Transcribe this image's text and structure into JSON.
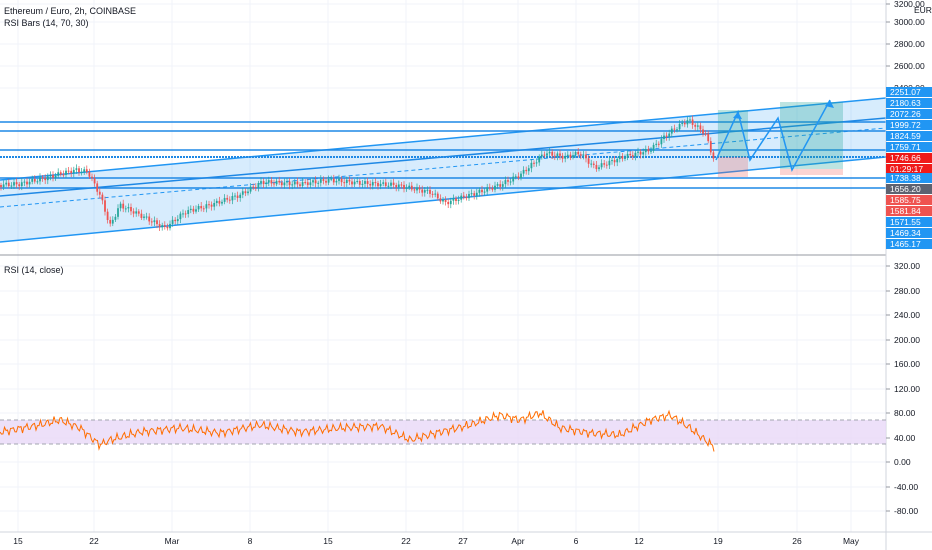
{
  "header": {
    "symbol_line": "Ethereum / Euro, 2h, COINBASE",
    "indicator_line": "RSI Bars (14, 70, 30)"
  },
  "rsi_panel": {
    "title": "RSI (14, close)"
  },
  "price_axis": {
    "unit": "EUR",
    "ticks": [
      "3200.00",
      "3000.00",
      "2800.00",
      "2600.00",
      "2400.00"
    ]
  },
  "rsi_axis": {
    "ticks": [
      "320.00",
      "280.00",
      "240.00",
      "200.00",
      "160.00",
      "120.00",
      "80.00",
      "40.00",
      "0.00",
      "-40.00",
      "-80.00"
    ]
  },
  "time_axis": {
    "labels": [
      "15",
      "22",
      "Mar",
      "8",
      "15",
      "22",
      "27",
      "Apr",
      "6",
      "12",
      "19",
      "26",
      "May"
    ]
  },
  "price_tags": [
    {
      "label": "2251.07",
      "color": "#2196f3"
    },
    {
      "label": "2180.63",
      "color": "#2196f3"
    },
    {
      "label": "2072.26",
      "color": "#2196f3"
    },
    {
      "label": "1999.72",
      "color": "#2196f3"
    },
    {
      "label": "1824.59",
      "color": "#2196f3"
    },
    {
      "label": "1759.71",
      "color": "#2196f3"
    },
    {
      "label": "1746.66",
      "color": "#ef1a1a"
    },
    {
      "label": "01:29:17",
      "color": "#ef1a1a"
    },
    {
      "label": "1738.38",
      "color": "#2196f3"
    },
    {
      "label": "1656.20",
      "color": "#5d6270"
    },
    {
      "label": "1585.75",
      "color": "#ef5350"
    },
    {
      "label": "1581.84",
      "color": "#ef5350"
    },
    {
      "label": "1571.55",
      "color": "#2196f3"
    },
    {
      "label": "1469.34",
      "color": "#2196f3"
    },
    {
      "label": "1465.17",
      "color": "#2196f3"
    }
  ],
  "colors": {
    "channel": "#2196f3",
    "rsi_line": "#ff6d00",
    "rsi_band": "#e9d8f7",
    "candle_up": "#26a69a",
    "candle_down": "#ef5350"
  }
}
